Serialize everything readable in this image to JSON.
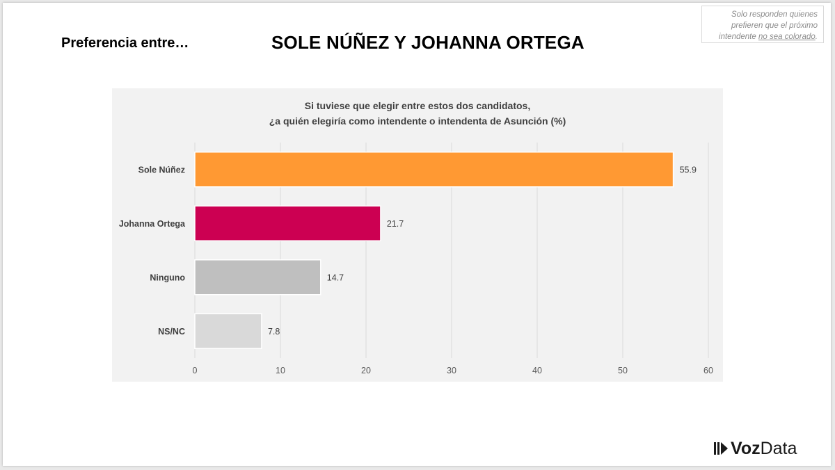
{
  "header": {
    "prefix": "Preferencia entre…",
    "title": "SOLE NÚÑEZ Y JOHANNA ORTEGA"
  },
  "note": {
    "line1": "Solo responden quienes",
    "line2": "prefieren que el próximo",
    "line3_start": "intendente ",
    "line3_underlined": "no sea colorado",
    "line3_end": "."
  },
  "logo": {
    "part1": "Voz",
    "part2": "Data"
  },
  "chart_data": {
    "type": "bar",
    "orientation": "horizontal",
    "title_line1": "Si tuviese que elegir entre estos dos candidatos,",
    "title_line2": "¿a quién elegiría como intendente o intendenta de Asunción (%)",
    "categories": [
      "Sole Núñez",
      "Johanna Ortega",
      "Ninguno",
      "NS/NC"
    ],
    "values": [
      55.9,
      21.7,
      14.7,
      7.8
    ],
    "value_labels": [
      "55.9",
      "21.7",
      "14.7",
      "7.8"
    ],
    "colors": [
      "#FF9933",
      "#CC0052",
      "#BFBFBF",
      "#D9D9D9"
    ],
    "xlim": [
      0,
      60
    ],
    "ticks": [
      0,
      10,
      20,
      30,
      40,
      50,
      60
    ],
    "grid": true,
    "legend": "none"
  }
}
